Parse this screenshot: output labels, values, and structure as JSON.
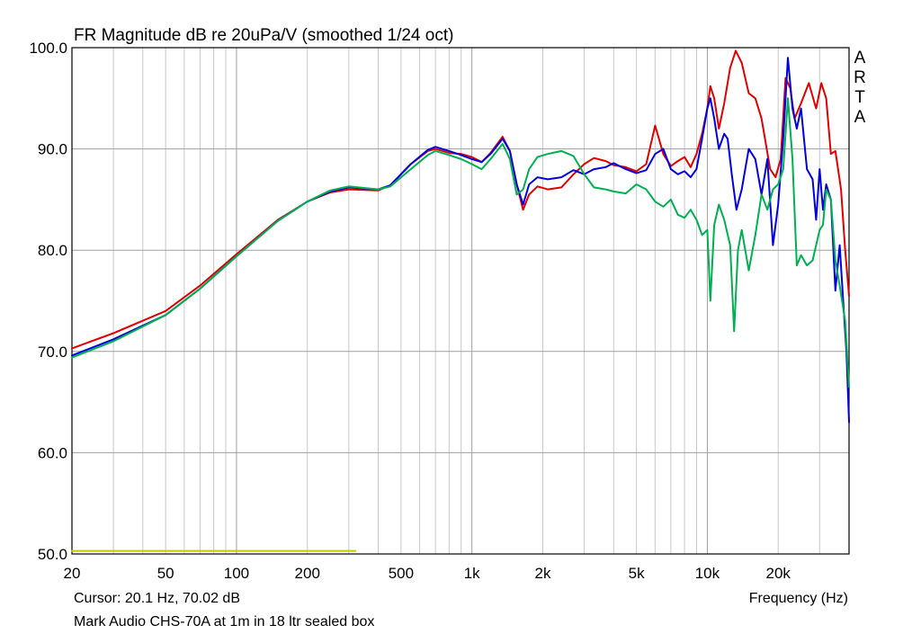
{
  "chart_data": {
    "type": "line",
    "title": "FR Magnitude dB re 20uPa/V (smoothed 1/24 oct)",
    "xlabel": "Frequency (Hz)",
    "ylabel": "",
    "x_scale": "log",
    "xlim": [
      20,
      40000
    ],
    "ylim": [
      50,
      100
    ],
    "grid": true,
    "y_ticks": [
      {
        "value": 100,
        "label": "100.0"
      },
      {
        "value": 90,
        "label": "90.0"
      },
      {
        "value": 80,
        "label": "80.0"
      },
      {
        "value": 70,
        "label": "70.0"
      },
      {
        "value": 60,
        "label": "60.0"
      },
      {
        "value": 50,
        "label": "50.0"
      }
    ],
    "x_ticks": [
      {
        "value": 20,
        "label": "20"
      },
      {
        "value": 50,
        "label": "50"
      },
      {
        "value": 100,
        "label": "100"
      },
      {
        "value": 200,
        "label": "200"
      },
      {
        "value": 500,
        "label": "500"
      },
      {
        "value": 1000,
        "label": "1k"
      },
      {
        "value": 2000,
        "label": "2k"
      },
      {
        "value": 5000,
        "label": "5k"
      },
      {
        "value": 10000,
        "label": "10k"
      },
      {
        "value": 20000,
        "label": "20k"
      }
    ],
    "brand": [
      "A",
      "R",
      "T",
      "A"
    ],
    "cursor_text": "Cursor: 20.1 Hz, 70.02 dB",
    "caption": "Mark Audio CHS-70A at 1m in 18 ltr sealed box",
    "series": [
      {
        "color": "#e00000",
        "points": [
          [
            20,
            70.3
          ],
          [
            30,
            71.8
          ],
          [
            50,
            74.0
          ],
          [
            70,
            76.5
          ],
          [
            100,
            79.6
          ],
          [
            150,
            83.0
          ],
          [
            200,
            84.8
          ],
          [
            250,
            85.7
          ],
          [
            300,
            86.0
          ],
          [
            400,
            85.9
          ],
          [
            450,
            86.4
          ],
          [
            550,
            88.5
          ],
          [
            650,
            89.8
          ],
          [
            700,
            90.0
          ],
          [
            800,
            89.6
          ],
          [
            900,
            89.5
          ],
          [
            1000,
            89.2
          ],
          [
            1100,
            88.7
          ],
          [
            1200,
            89.6
          ],
          [
            1350,
            91.2
          ],
          [
            1450,
            89.8
          ],
          [
            1550,
            86.5
          ],
          [
            1650,
            84.0
          ],
          [
            1750,
            85.5
          ],
          [
            1900,
            86.3
          ],
          [
            2100,
            86.0
          ],
          [
            2400,
            86.2
          ],
          [
            2700,
            87.5
          ],
          [
            3000,
            88.5
          ],
          [
            3300,
            89.1
          ],
          [
            3700,
            88.8
          ],
          [
            4000,
            88.4
          ],
          [
            4500,
            88.2
          ],
          [
            5000,
            87.8
          ],
          [
            5500,
            88.5
          ],
          [
            6000,
            92.3
          ],
          [
            6500,
            89.5
          ],
          [
            7000,
            88.3
          ],
          [
            7500,
            88.8
          ],
          [
            8000,
            89.2
          ],
          [
            8500,
            88.2
          ],
          [
            9000,
            89.5
          ],
          [
            9500,
            91.5
          ],
          [
            10000,
            94.0
          ],
          [
            10300,
            96.2
          ],
          [
            10700,
            95.0
          ],
          [
            11200,
            92.0
          ],
          [
            11800,
            94.5
          ],
          [
            12500,
            98.0
          ],
          [
            13200,
            99.7
          ],
          [
            14000,
            98.5
          ],
          [
            15000,
            95.5
          ],
          [
            16000,
            95.0
          ],
          [
            17000,
            93.0
          ],
          [
            18500,
            88.0
          ],
          [
            19500,
            87.2
          ],
          [
            20500,
            89.0
          ],
          [
            21500,
            97.0
          ],
          [
            22500,
            96.0
          ],
          [
            23500,
            93.0
          ],
          [
            25000,
            94.5
          ],
          [
            27000,
            96.5
          ],
          [
            29000,
            94.0
          ],
          [
            30500,
            96.5
          ],
          [
            32000,
            95.0
          ],
          [
            33500,
            89.5
          ],
          [
            35000,
            89.8
          ],
          [
            37000,
            86.0
          ],
          [
            38500,
            80.0
          ],
          [
            40000,
            75.5
          ]
        ]
      },
      {
        "color": "#0000e0",
        "points": [
          [
            20,
            69.6
          ],
          [
            30,
            71.2
          ],
          [
            50,
            73.6
          ],
          [
            70,
            76.2
          ],
          [
            100,
            79.4
          ],
          [
            150,
            82.9
          ],
          [
            200,
            84.8
          ],
          [
            250,
            85.8
          ],
          [
            300,
            86.2
          ],
          [
            400,
            86.0
          ],
          [
            450,
            86.4
          ],
          [
            550,
            88.5
          ],
          [
            650,
            89.9
          ],
          [
            700,
            90.2
          ],
          [
            800,
            89.8
          ],
          [
            900,
            89.4
          ],
          [
            1000,
            89.0
          ],
          [
            1100,
            88.7
          ],
          [
            1200,
            89.5
          ],
          [
            1350,
            91.0
          ],
          [
            1450,
            89.8
          ],
          [
            1550,
            86.5
          ],
          [
            1650,
            84.5
          ],
          [
            1750,
            86.5
          ],
          [
            1900,
            87.2
          ],
          [
            2100,
            87.0
          ],
          [
            2400,
            87.2
          ],
          [
            2700,
            87.9
          ],
          [
            3000,
            87.5
          ],
          [
            3300,
            88.0
          ],
          [
            3700,
            88.2
          ],
          [
            4000,
            88.6
          ],
          [
            4500,
            88.0
          ],
          [
            5000,
            87.6
          ],
          [
            5500,
            87.9
          ],
          [
            6000,
            89.5
          ],
          [
            6500,
            90.0
          ],
          [
            7000,
            88.0
          ],
          [
            7500,
            87.5
          ],
          [
            8000,
            87.8
          ],
          [
            8500,
            87.2
          ],
          [
            9000,
            88.0
          ],
          [
            9500,
            91.0
          ],
          [
            10000,
            94.0
          ],
          [
            10300,
            95.0
          ],
          [
            10700,
            93.0
          ],
          [
            11200,
            90.0
          ],
          [
            11800,
            91.5
          ],
          [
            12200,
            91.0
          ],
          [
            12700,
            87.5
          ],
          [
            13300,
            84.0
          ],
          [
            14000,
            86.0
          ],
          [
            15000,
            90.0
          ],
          [
            16000,
            89.0
          ],
          [
            17000,
            85.5
          ],
          [
            18000,
            89.0
          ],
          [
            19000,
            80.5
          ],
          [
            20000,
            84.5
          ],
          [
            21000,
            91.0
          ],
          [
            22000,
            99.0
          ],
          [
            23000,
            94.0
          ],
          [
            24000,
            92.0
          ],
          [
            25000,
            94.0
          ],
          [
            26500,
            88.0
          ],
          [
            28000,
            87.0
          ],
          [
            29000,
            83.0
          ],
          [
            30000,
            88.0
          ],
          [
            31000,
            84.0
          ],
          [
            32000,
            86.5
          ],
          [
            33500,
            85.0
          ],
          [
            35000,
            76.0
          ],
          [
            36500,
            80.5
          ],
          [
            38000,
            74.0
          ],
          [
            39000,
            70.0
          ],
          [
            40000,
            63.0
          ]
        ]
      },
      {
        "color": "#00b050",
        "points": [
          [
            20,
            69.4
          ],
          [
            30,
            71.0
          ],
          [
            50,
            73.6
          ],
          [
            70,
            76.2
          ],
          [
            100,
            79.4
          ],
          [
            150,
            82.9
          ],
          [
            200,
            84.8
          ],
          [
            250,
            85.9
          ],
          [
            300,
            86.3
          ],
          [
            400,
            86.0
          ],
          [
            450,
            86.3
          ],
          [
            550,
            88.0
          ],
          [
            650,
            89.4
          ],
          [
            700,
            89.8
          ],
          [
            800,
            89.4
          ],
          [
            900,
            89.0
          ],
          [
            1000,
            88.5
          ],
          [
            1100,
            88.0
          ],
          [
            1200,
            89.0
          ],
          [
            1350,
            90.5
          ],
          [
            1450,
            89.0
          ],
          [
            1550,
            85.5
          ],
          [
            1650,
            86.0
          ],
          [
            1750,
            88.0
          ],
          [
            1900,
            89.2
          ],
          [
            2100,
            89.5
          ],
          [
            2400,
            89.8
          ],
          [
            2700,
            89.3
          ],
          [
            3000,
            87.5
          ],
          [
            3300,
            86.2
          ],
          [
            3700,
            86.0
          ],
          [
            4000,
            85.8
          ],
          [
            4500,
            85.6
          ],
          [
            5000,
            86.5
          ],
          [
            5500,
            86.0
          ],
          [
            6000,
            84.8
          ],
          [
            6500,
            84.3
          ],
          [
            7000,
            85.0
          ],
          [
            7500,
            83.5
          ],
          [
            8000,
            83.2
          ],
          [
            8500,
            84.0
          ],
          [
            9000,
            83.0
          ],
          [
            9500,
            81.5
          ],
          [
            10000,
            82.0
          ],
          [
            10300,
            75.0
          ],
          [
            10700,
            82.5
          ],
          [
            11200,
            84.5
          ],
          [
            11800,
            83.0
          ],
          [
            12500,
            80.5
          ],
          [
            13000,
            72.0
          ],
          [
            13500,
            80.0
          ],
          [
            14000,
            82.0
          ],
          [
            15000,
            78.0
          ],
          [
            16000,
            81.5
          ],
          [
            17000,
            85.5
          ],
          [
            18000,
            84.0
          ],
          [
            19000,
            86.0
          ],
          [
            20000,
            86.5
          ],
          [
            21000,
            88.0
          ],
          [
            22000,
            95.0
          ],
          [
            23000,
            89.0
          ],
          [
            24000,
            78.5
          ],
          [
            25000,
            79.5
          ],
          [
            26500,
            78.5
          ],
          [
            28000,
            79.0
          ],
          [
            30000,
            82.0
          ],
          [
            31000,
            82.5
          ],
          [
            32000,
            86.0
          ],
          [
            33500,
            85.0
          ],
          [
            35000,
            79.0
          ],
          [
            36500,
            76.5
          ],
          [
            38500,
            73.0
          ],
          [
            40000,
            66.5
          ]
        ]
      },
      {
        "color": "#c8c800",
        "points": [
          [
            20,
            50.3
          ],
          [
            320,
            50.3
          ]
        ]
      }
    ]
  }
}
